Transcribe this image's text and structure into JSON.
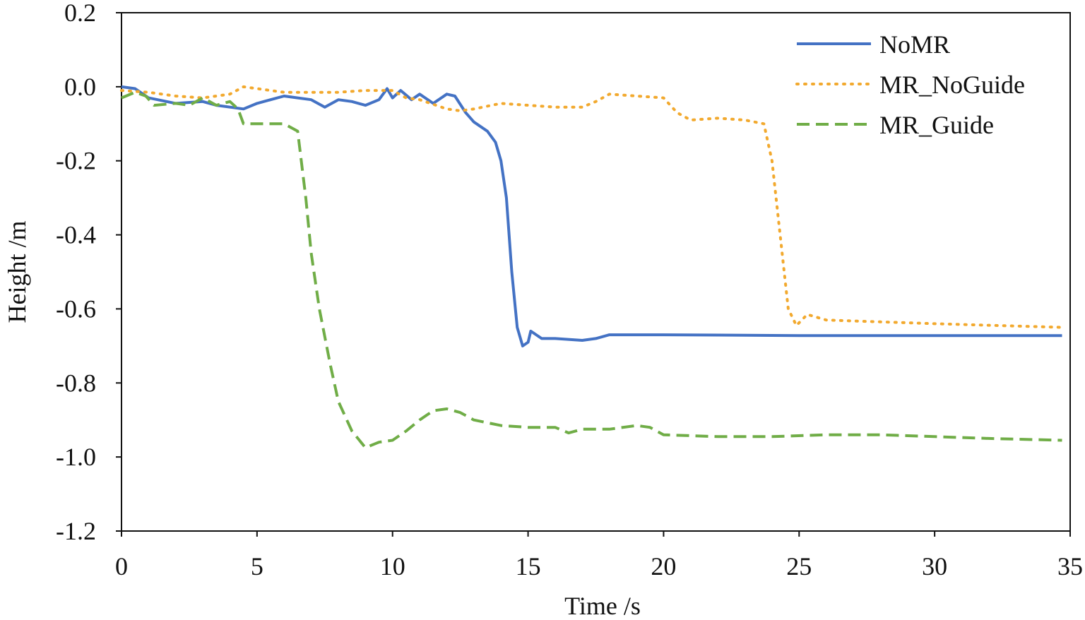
{
  "chart_data": {
    "type": "line",
    "title": "",
    "xlabel": "Time /s",
    "ylabel": "Height /m",
    "xlim": [
      0,
      35
    ],
    "ylim": [
      -1.2,
      0.2
    ],
    "xticks": [
      "0",
      "5",
      "10",
      "15",
      "20",
      "25",
      "30",
      "35"
    ],
    "yticks": [
      "0.2",
      "0.0",
      "-0.2",
      "-0.4",
      "-0.6",
      "-0.8",
      "-1.0",
      "-1.2"
    ],
    "grid": false,
    "legend_position": "top-right",
    "series": [
      {
        "name": "NoMR",
        "color": "#4472C4",
        "style": "solid",
        "points": [
          [
            0,
            0.0
          ],
          [
            0.5,
            -0.005
          ],
          [
            1,
            -0.03
          ],
          [
            2,
            -0.045
          ],
          [
            3,
            -0.04
          ],
          [
            3.5,
            -0.05
          ],
          [
            4,
            -0.055
          ],
          [
            4.5,
            -0.06
          ],
          [
            5,
            -0.045
          ],
          [
            6,
            -0.025
          ],
          [
            6.5,
            -0.03
          ],
          [
            7,
            -0.035
          ],
          [
            7.5,
            -0.055
          ],
          [
            8,
            -0.035
          ],
          [
            8.5,
            -0.04
          ],
          [
            9,
            -0.05
          ],
          [
            9.5,
            -0.035
          ],
          [
            9.8,
            -0.005
          ],
          [
            10,
            -0.03
          ],
          [
            10.3,
            -0.01
          ],
          [
            10.7,
            -0.035
          ],
          [
            11,
            -0.02
          ],
          [
            11.5,
            -0.045
          ],
          [
            12,
            -0.02
          ],
          [
            12.3,
            -0.025
          ],
          [
            12.7,
            -0.07
          ],
          [
            13,
            -0.095
          ],
          [
            13.5,
            -0.12
          ],
          [
            13.8,
            -0.15
          ],
          [
            14,
            -0.2
          ],
          [
            14.2,
            -0.3
          ],
          [
            14.4,
            -0.5
          ],
          [
            14.6,
            -0.65
          ],
          [
            14.8,
            -0.7
          ],
          [
            15,
            -0.69
          ],
          [
            15.1,
            -0.66
          ],
          [
            15.3,
            -0.67
          ],
          [
            15.5,
            -0.68
          ],
          [
            16,
            -0.68
          ],
          [
            17,
            -0.685
          ],
          [
            17.5,
            -0.68
          ],
          [
            18,
            -0.67
          ],
          [
            20,
            -0.67
          ],
          [
            25,
            -0.672
          ],
          [
            30,
            -0.672
          ],
          [
            34.7,
            -0.672
          ]
        ]
      },
      {
        "name": "MR_NoGuide",
        "color": "#F2A92E",
        "style": "dotted",
        "points": [
          [
            0,
            -0.01
          ],
          [
            1,
            -0.015
          ],
          [
            2,
            -0.025
          ],
          [
            3,
            -0.03
          ],
          [
            4,
            -0.02
          ],
          [
            4.5,
            0.0
          ],
          [
            5,
            -0.005
          ],
          [
            6,
            -0.015
          ],
          [
            8,
            -0.015
          ],
          [
            9,
            -0.01
          ],
          [
            10,
            -0.01
          ],
          [
            10.5,
            -0.03
          ],
          [
            11,
            -0.035
          ],
          [
            12,
            -0.06
          ],
          [
            12.5,
            -0.065
          ],
          [
            13,
            -0.06
          ],
          [
            14,
            -0.045
          ],
          [
            15,
            -0.05
          ],
          [
            16,
            -0.055
          ],
          [
            17,
            -0.055
          ],
          [
            17.5,
            -0.04
          ],
          [
            18,
            -0.02
          ],
          [
            19,
            -0.025
          ],
          [
            20,
            -0.03
          ],
          [
            20.5,
            -0.07
          ],
          [
            21,
            -0.09
          ],
          [
            22,
            -0.085
          ],
          [
            23,
            -0.09
          ],
          [
            23.7,
            -0.1
          ],
          [
            24,
            -0.2
          ],
          [
            24.3,
            -0.4
          ],
          [
            24.6,
            -0.6
          ],
          [
            24.9,
            -0.645
          ],
          [
            25.3,
            -0.615
          ],
          [
            26,
            -0.63
          ],
          [
            28,
            -0.635
          ],
          [
            30,
            -0.64
          ],
          [
            34.7,
            -0.65
          ]
        ]
      },
      {
        "name": "MR_Guide",
        "color": "#70AD47",
        "style": "dashed",
        "points": [
          [
            0,
            -0.03
          ],
          [
            0.5,
            -0.015
          ],
          [
            0.9,
            -0.025
          ],
          [
            1.2,
            -0.05
          ],
          [
            2,
            -0.045
          ],
          [
            2.5,
            -0.05
          ],
          [
            3,
            -0.03
          ],
          [
            3.5,
            -0.05
          ],
          [
            4,
            -0.04
          ],
          [
            4.3,
            -0.06
          ],
          [
            4.5,
            -0.1
          ],
          [
            6,
            -0.1
          ],
          [
            6.5,
            -0.12
          ],
          [
            6.8,
            -0.3
          ],
          [
            7,
            -0.45
          ],
          [
            7.3,
            -0.6
          ],
          [
            7.7,
            -0.75
          ],
          [
            8,
            -0.85
          ],
          [
            8.5,
            -0.93
          ],
          [
            9,
            -0.975
          ],
          [
            9.5,
            -0.96
          ],
          [
            10,
            -0.955
          ],
          [
            10.5,
            -0.93
          ],
          [
            11,
            -0.9
          ],
          [
            11.5,
            -0.875
          ],
          [
            12,
            -0.87
          ],
          [
            12.5,
            -0.88
          ],
          [
            13,
            -0.9
          ],
          [
            14,
            -0.915
          ],
          [
            15,
            -0.92
          ],
          [
            16,
            -0.92
          ],
          [
            16.5,
            -0.935
          ],
          [
            17,
            -0.925
          ],
          [
            18,
            -0.925
          ],
          [
            19,
            -0.915
          ],
          [
            19.5,
            -0.92
          ],
          [
            20,
            -0.94
          ],
          [
            22,
            -0.945
          ],
          [
            24,
            -0.945
          ],
          [
            26,
            -0.94
          ],
          [
            28,
            -0.94
          ],
          [
            30,
            -0.945
          ],
          [
            32,
            -0.95
          ],
          [
            34.7,
            -0.955
          ]
        ]
      }
    ]
  }
}
